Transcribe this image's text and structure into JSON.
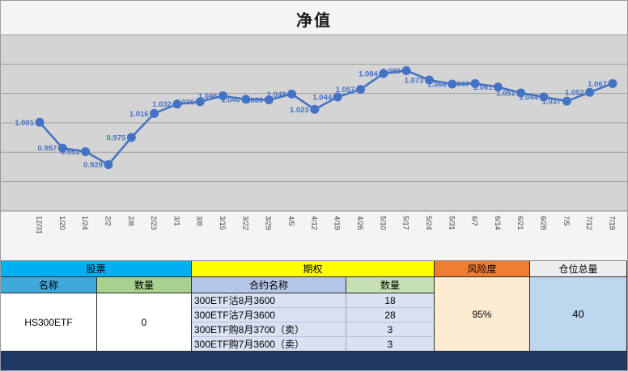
{
  "chart_data": {
    "type": "line",
    "title": "净值",
    "x": [
      "12/31",
      "1/20",
      "1/24",
      "2/2",
      "2/8",
      "2/23",
      "3/1",
      "3/8",
      "3/15",
      "3/22",
      "3/29",
      "4/5",
      "4/12",
      "4/19",
      "4/26",
      "5/10",
      "5/17",
      "5/24",
      "5/31",
      "6/7",
      "6/14",
      "6/21",
      "6/28",
      "7/5",
      "7/12",
      "7/19"
    ],
    "values": [
      1.001,
      0.957,
      0.951,
      0.929,
      0.975,
      1.016,
      1.032,
      1.036,
      1.046,
      1.04,
      1.039,
      1.049,
      1.023,
      1.044,
      1.057,
      1.084,
      1.089,
      1.073,
      1.066,
      1.067,
      1.061,
      1.051,
      1.044,
      1.037,
      1.052,
      1.067
    ],
    "ylim": [
      0.85,
      1.15
    ],
    "grid_step": 0.05,
    "legend": "none",
    "grid": true,
    "line_color": "#4472C4",
    "marker_color": "#4472C4",
    "value_label_color": "#4472C4",
    "plot_bg": "#D4D4D4",
    "gridline_color": "#A0A0A0",
    "xlabel_color": "#404040"
  },
  "table": {
    "stock_section": "股票",
    "options_section": "期权",
    "risk_section": "风险度",
    "position_section": "仓位总量",
    "stock": {
      "name_header": "名称",
      "qty_header": "数量",
      "name": "HS300ETF",
      "qty": "0"
    },
    "options": {
      "name_header": "合约名称",
      "qty_header": "数量",
      "rows": [
        {
          "name": "300ETF沽8月3600",
          "qty": "18"
        },
        {
          "name": "300ETF沽7月3600",
          "qty": "28"
        },
        {
          "name": "300ETF购8月3700（卖）",
          "qty": "3"
        },
        {
          "name": "300ETF购7月3600（卖）",
          "qty": "3"
        }
      ]
    },
    "risk_value": "95%",
    "position_value": "40"
  },
  "colors": {
    "stock_header": "#00B0F0",
    "options_header": "#FFFF00",
    "risk_header": "#ED7D31",
    "position_header": "#EDEDED",
    "name_header": "#3FA9DC",
    "qty_header": "#A9D08E",
    "contract_header": "#B4C6E7",
    "options_qty_header": "#C6E0B4",
    "risk_body": "#FDEBD2",
    "position_body": "#BDD7EE",
    "contract_body": "#D9E1F2",
    "footer_bar": "#1F3864",
    "series": "#4472C4"
  }
}
